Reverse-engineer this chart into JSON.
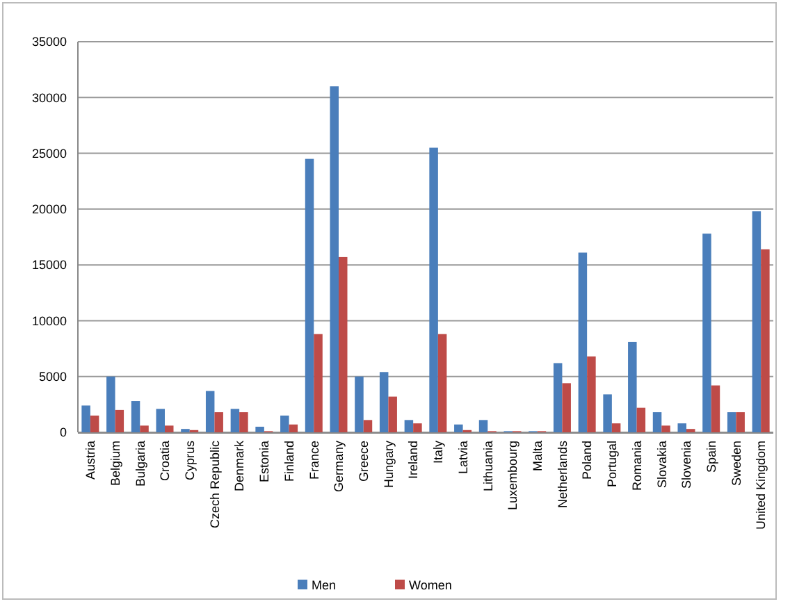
{
  "chart_data": {
    "type": "bar",
    "categories": [
      "Austria",
      "Belgium",
      "Bulgaria",
      "Croatia",
      "Cyprus",
      "Czech Republic",
      "Denmark",
      "Estonia",
      "Finland",
      "France",
      "Germany",
      "Greece",
      "Hungary",
      "Ireland",
      "Italy",
      "Latvia",
      "Lithuania",
      "Luxembourg",
      "Malta",
      "Netherlands",
      "Poland",
      "Portugal",
      "Romania",
      "Slovakia",
      "Slovenia",
      "Spain",
      "Sweden",
      "United Kingdom"
    ],
    "series": [
      {
        "name": "Men",
        "color": "#4a7ebb",
        "values": [
          2400,
          5000,
          2800,
          2100,
          300,
          3700,
          2100,
          500,
          1500,
          24500,
          31000,
          5000,
          5400,
          1100,
          25500,
          700,
          1100,
          100,
          100,
          6200,
          16100,
          3400,
          8100,
          1800,
          800,
          17800,
          1800,
          19800
        ]
      },
      {
        "name": "Women",
        "color": "#be4b48",
        "values": [
          1500,
          2000,
          600,
          600,
          200,
          1800,
          1800,
          100,
          700,
          8800,
          15700,
          1100,
          3200,
          800,
          8800,
          200,
          100,
          100,
          100,
          4400,
          6800,
          800,
          2200,
          600,
          300,
          4200,
          1800,
          16400
        ]
      }
    ],
    "ylim": [
      0,
      35000
    ],
    "yticks": [
      0,
      5000,
      10000,
      15000,
      20000,
      25000,
      30000,
      35000
    ],
    "grid": "y",
    "legend": "bottom"
  }
}
